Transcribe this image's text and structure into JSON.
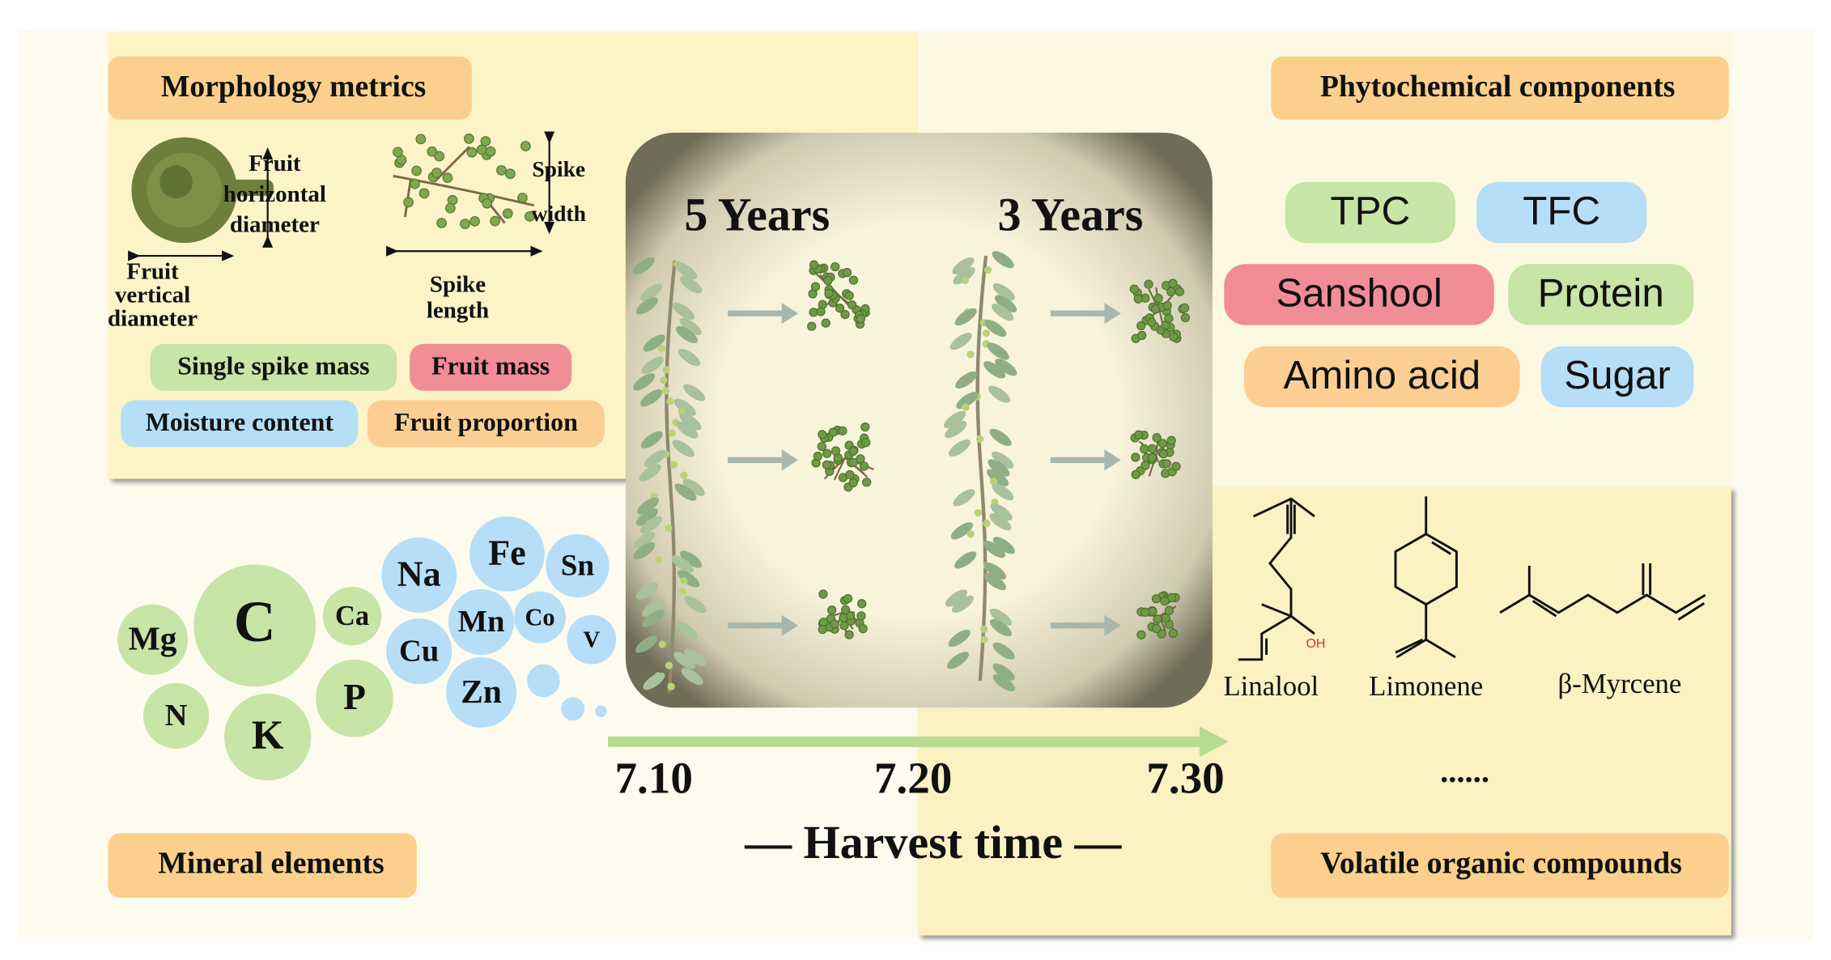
{
  "morphology": {
    "title": "Morphology metrics",
    "fruit_horizontal_diameter": [
      "Fruit",
      "horizontal",
      "diameter"
    ],
    "fruit_vertical_diameter": [
      "Fruit",
      "vertical",
      "diameter"
    ],
    "spike_width": [
      "Spike",
      "width"
    ],
    "spike_length": [
      "Spike",
      "length"
    ],
    "metrics": [
      "Single spike mass",
      "Fruit mass",
      "Moisture content",
      "Fruit proportion"
    ]
  },
  "phytochemical": {
    "title": "Phytochemical components",
    "items": [
      "TPC",
      "TFC",
      "Sanshool",
      "Protein",
      "Amino acid",
      "Sugar"
    ]
  },
  "minerals": {
    "title": "Mineral elements",
    "elements": [
      "Mg",
      "C",
      "Ca",
      "N",
      "K",
      "P",
      "Na",
      "Fe",
      "Sn",
      "Cu",
      "Mn",
      "Co",
      "V",
      "Zn"
    ]
  },
  "volatiles": {
    "title": "Volatile organic compounds",
    "compounds": [
      "Linalool",
      "Limonene",
      "β-Myrcene"
    ],
    "hydroxyl": "OH",
    "more": "......"
  },
  "harvest": {
    "groups": [
      "5 Years",
      "3 Years"
    ],
    "dates": [
      "7.10",
      "7.20",
      "7.30"
    ],
    "label": "— Harvest time —"
  }
}
